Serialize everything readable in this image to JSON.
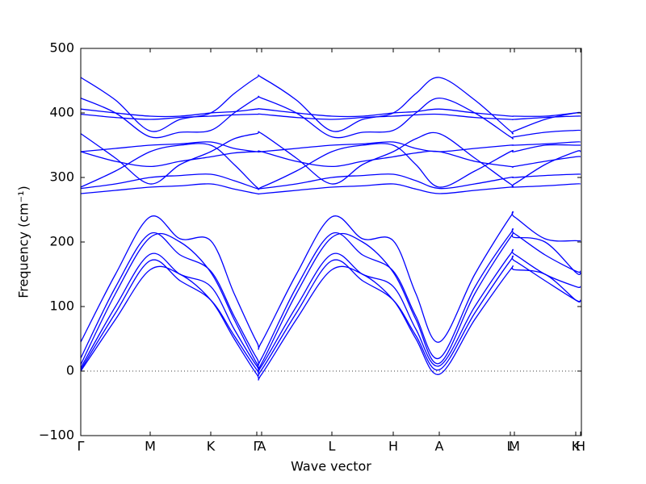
{
  "chart_data": {
    "type": "line",
    "xlabel": "Wave vector",
    "ylabel": "Frequency (cm⁻¹)",
    "x": [
      0,
      43,
      86,
      123,
      161,
      190,
      218,
      224,
      267,
      311,
      349,
      387,
      415,
      444,
      488,
      532,
      537,
      575,
      613,
      619
    ],
    "xlim": [
      0,
      620
    ],
    "xticks": [
      {
        "value": 0,
        "label": "Γ"
      },
      {
        "value": 86,
        "label": "M"
      },
      {
        "value": 161,
        "label": "K"
      },
      {
        "value": 218,
        "label": "Γ"
      },
      {
        "value": 224,
        "label": "A"
      },
      {
        "value": 311,
        "label": "L"
      },
      {
        "value": 387,
        "label": "H"
      },
      {
        "value": 444,
        "label": "A"
      },
      {
        "value": 532,
        "label": "L"
      },
      {
        "value": 537,
        "label": "M"
      },
      {
        "value": 613,
        "label": "K"
      },
      {
        "value": 619,
        "label": "H"
      }
    ],
    "ylim": [
      -100,
      500
    ],
    "yticks": [
      {
        "value": -100,
        "label": "−100"
      },
      0,
      100,
      200,
      300,
      400,
      500
    ],
    "hline": 0,
    "color": "#0000ff",
    "series": [
      {
        "values": [
          45,
          150,
          239,
          205,
          202,
          120,
          45,
          45,
          150,
          239,
          205,
          202,
          120,
          45,
          150,
          239,
          239,
          205,
          202,
          202
        ]
      },
      {
        "values": [
          20,
          130,
          213,
          180,
          155,
          85,
          20,
          20,
          130,
          213,
          180,
          155,
          85,
          20,
          130,
          213,
          213,
          180,
          155,
          155
        ]
      },
      {
        "values": [
          10,
          120,
          207,
          200,
          153,
          80,
          12,
          12,
          120,
          207,
          200,
          153,
          80,
          12,
          120,
          207,
          207,
          200,
          153,
          153
        ]
      },
      {
        "values": [
          5,
          100,
          181,
          150,
          131,
          65,
          8,
          8,
          100,
          181,
          150,
          131,
          65,
          8,
          100,
          181,
          181,
          150,
          131,
          131
        ]
      },
      {
        "values": [
          2,
          90,
          171,
          140,
          110,
          55,
          2,
          2,
          90,
          171,
          140,
          110,
          55,
          2,
          90,
          171,
          171,
          140,
          110,
          110
        ]
      },
      {
        "values": [
          0,
          80,
          157,
          150,
          110,
          50,
          -5,
          -5,
          80,
          157,
          150,
          110,
          50,
          -5,
          80,
          157,
          157,
          150,
          110,
          110
        ]
      },
      {
        "values": [
          455,
          420,
          372,
          390,
          400,
          430,
          455,
          455,
          420,
          372,
          390,
          400,
          430,
          455,
          420,
          372,
          372,
          390,
          400,
          400
        ]
      },
      {
        "values": [
          423,
          400,
          363,
          370,
          373,
          400,
          423,
          423,
          400,
          363,
          370,
          373,
          400,
          423,
          400,
          363,
          363,
          370,
          373,
          373
        ]
      },
      {
        "values": [
          406,
          400,
          395,
          395,
          400,
          402,
          406,
          406,
          400,
          395,
          395,
          400,
          402,
          406,
          400,
          395,
          395,
          395,
          400,
          400
        ]
      },
      {
        "values": [
          398,
          393,
          390,
          393,
          395,
          397,
          398,
          398,
          393,
          390,
          393,
          395,
          397,
          398,
          393,
          390,
          390,
          393,
          395,
          395
        ]
      },
      {
        "values": [
          368,
          330,
          290,
          320,
          340,
          360,
          368,
          368,
          330,
          290,
          320,
          340,
          360,
          368,
          330,
          290,
          290,
          320,
          340,
          340
        ]
      },
      {
        "values": [
          340,
          325,
          317,
          325,
          332,
          338,
          340,
          340,
          325,
          317,
          325,
          332,
          338,
          340,
          325,
          317,
          317,
          325,
          332,
          332
        ]
      },
      {
        "values": [
          340,
          345,
          350,
          352,
          355,
          345,
          340,
          340,
          345,
          350,
          352,
          355,
          345,
          340,
          345,
          350,
          350,
          352,
          355,
          355
        ]
      },
      {
        "values": [
          285,
          310,
          340,
          350,
          350,
          320,
          285,
          285,
          310,
          340,
          350,
          350,
          320,
          285,
          310,
          340,
          340,
          350,
          350,
          350
        ]
      },
      {
        "values": [
          283,
          290,
          300,
          303,
          305,
          295,
          283,
          283,
          290,
          300,
          303,
          305,
          295,
          283,
          290,
          300,
          300,
          303,
          305,
          305
        ]
      },
      {
        "values": [
          275,
          280,
          285,
          287,
          290,
          282,
          275,
          275,
          280,
          285,
          287,
          290,
          282,
          275,
          280,
          285,
          285,
          287,
          290,
          290
        ]
      }
    ]
  }
}
